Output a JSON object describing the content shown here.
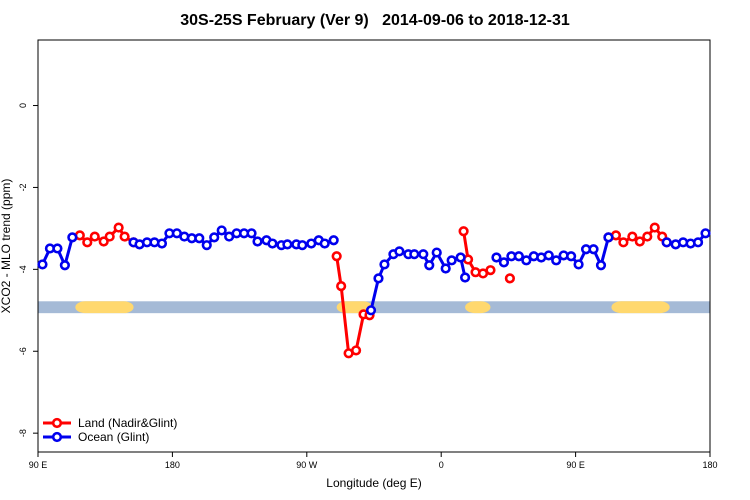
{
  "chart_data": {
    "type": "line",
    "title": "30S-25S February (Ver 9)   2014-09-06 to 2018-12-31",
    "x_label": "Longitude (deg E)",
    "y_label": "XCO2 - MLO trend (ppm)",
    "xlim": [
      90,
      540
    ],
    "ylim": [
      -8.46,
      1.6
    ],
    "xticks": [
      {
        "value": 90,
        "label": "90 E"
      },
      {
        "value": 180,
        "label": "180"
      },
      {
        "value": 270,
        "label": "90 W"
      },
      {
        "value": 360,
        "label": "0"
      },
      {
        "value": 450,
        "label": "90 E"
      },
      {
        "value": 540,
        "label": "180"
      }
    ],
    "yticks": [
      0,
      -2,
      -4,
      -6,
      -8
    ],
    "legend": "bottom-left",
    "band_ylim": [
      -4.78,
      -5.07
    ],
    "band_color": "#a5bad6",
    "land_color": "#ffd86e",
    "land_spans": [
      [
        115,
        154
      ],
      [
        290,
        314
      ],
      [
        376,
        393
      ],
      [
        474,
        513
      ]
    ],
    "series": [
      {
        "name": "Land (Nadir&Glint)",
        "color": "#ff0000",
        "x": [
          118,
          123,
          128,
          134,
          138,
          144,
          148,
          154,
          null,
          290,
          293,
          298,
          303,
          308,
          312,
          null,
          375,
          378,
          383,
          388,
          393,
          null,
          406,
          null,
          472,
          477,
          482,
          488,
          493,
          498,
          503,
          508,
          511
        ],
        "values": [
          -3.17,
          -3.34,
          -3.2,
          -3.32,
          -3.2,
          -2.98,
          -3.2,
          -3.34,
          null,
          -3.68,
          -4.41,
          -6.05,
          -5.98,
          -5.1,
          -5.12,
          null,
          -3.07,
          -3.76,
          -4.07,
          -4.1,
          -4.02,
          null,
          -4.22,
          null,
          -3.22,
          -3.17,
          -3.34,
          -3.2,
          -3.32,
          -3.2,
          -2.98,
          -3.2,
          -3.34
        ]
      },
      {
        "name": "Ocean (Glint)",
        "color": "#0000ee",
        "x": [
          93,
          98,
          103,
          108,
          113,
          null,
          154,
          158,
          163,
          168,
          173,
          178,
          183,
          188,
          193,
          198,
          203,
          208,
          213,
          218,
          223,
          228,
          233,
          237,
          243,
          247,
          253,
          257,
          263,
          267,
          273,
          278,
          282,
          288,
          null,
          313,
          318,
          322,
          328,
          332,
          338,
          342,
          348,
          352,
          357,
          363,
          367,
          373,
          376,
          null,
          397,
          402,
          407,
          412,
          417,
          422,
          427,
          432,
          437,
          442,
          447,
          452,
          457,
          462,
          467,
          472,
          null,
          511,
          517,
          522,
          527,
          532,
          537
        ],
        "values": [
          -3.88,
          -3.49,
          -3.49,
          -3.9,
          -3.22,
          null,
          -3.34,
          -3.39,
          -3.34,
          -3.34,
          -3.37,
          -3.12,
          -3.12,
          -3.2,
          -3.24,
          -3.24,
          -3.41,
          -3.22,
          -3.05,
          -3.2,
          -3.12,
          -3.12,
          -3.12,
          -3.32,
          -3.29,
          -3.37,
          -3.41,
          -3.39,
          -3.39,
          -3.41,
          -3.37,
          -3.29,
          -3.37,
          -3.29,
          null,
          -5.0,
          -4.22,
          -3.88,
          -3.63,
          -3.56,
          -3.63,
          -3.63,
          -3.63,
          -3.9,
          -3.59,
          -3.98,
          -3.78,
          -3.71,
          -4.2,
          null,
          -3.71,
          -3.83,
          -3.68,
          -3.68,
          -3.78,
          -3.68,
          -3.71,
          -3.66,
          -3.78,
          -3.66,
          -3.68,
          -3.88,
          -3.51,
          -3.51,
          -3.9,
          -3.22,
          null,
          -3.34,
          -3.39,
          -3.34,
          -3.37,
          -3.34,
          -3.12
        ]
      }
    ]
  }
}
